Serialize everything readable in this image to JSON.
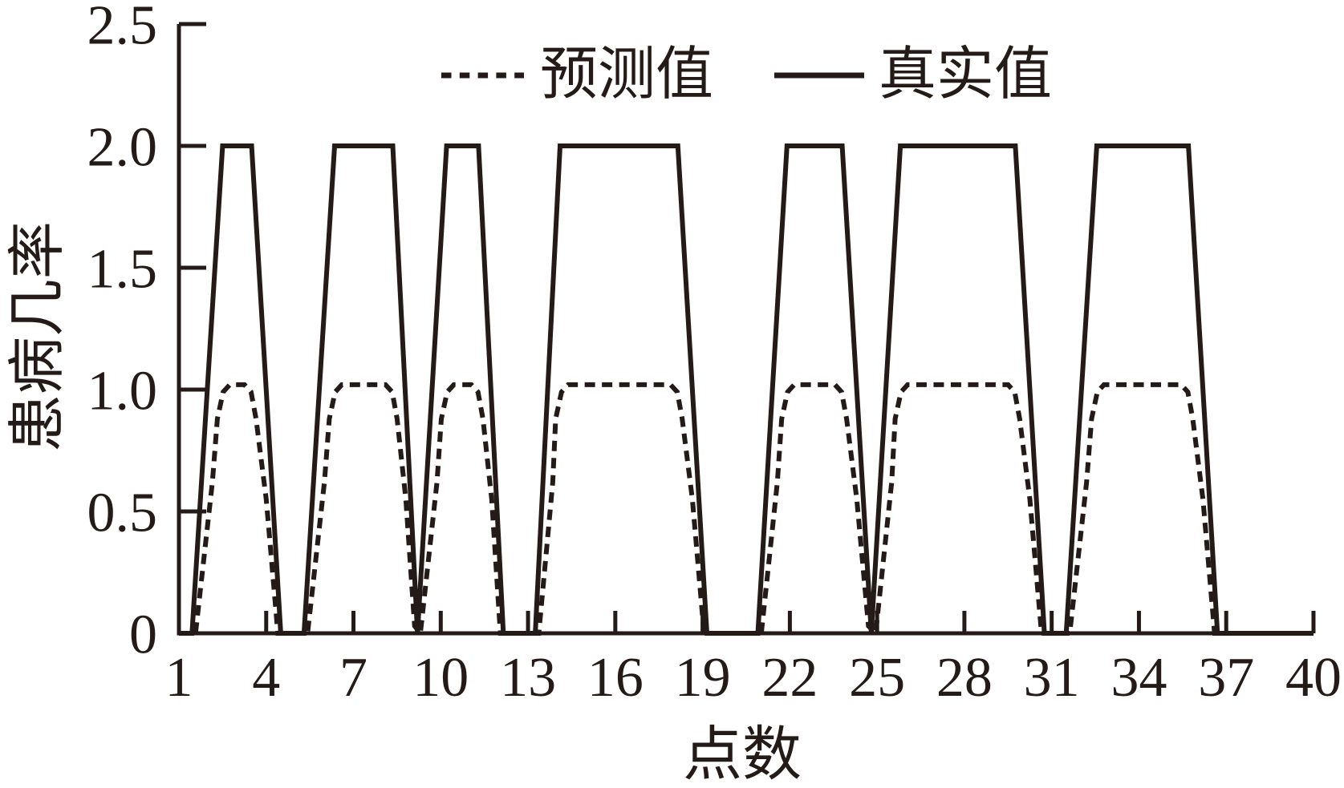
{
  "figure": {
    "background": "#ffffff",
    "ink_color": "#241b18"
  },
  "legend": {
    "items": [
      {
        "label": "预测值",
        "style": "dashed"
      },
      {
        "label": "真实值",
        "style": "solid"
      }
    ]
  },
  "chart_data": {
    "type": "line",
    "title": "",
    "xlabel": "点数",
    "ylabel": "患病几率",
    "xlim": [
      1,
      40
    ],
    "ylim": [
      0,
      2.5
    ],
    "grid": false,
    "legend_position": "top-center",
    "xticks": {
      "values": [
        1,
        4,
        7,
        10,
        13,
        16,
        19,
        22,
        25,
        28,
        31,
        34,
        37,
        40
      ],
      "labels": [
        "1",
        "4",
        "7",
        "10",
        "13",
        "16",
        "19",
        "22",
        "25",
        "28",
        "31",
        "34",
        "37",
        "40"
      ]
    },
    "yticks": {
      "values": [
        0,
        0.5,
        1.0,
        1.5,
        2.0,
        2.5
      ],
      "labels": [
        "0",
        "0.5",
        "1.0",
        "1.5",
        "2.0",
        "2.5"
      ]
    },
    "series": [
      {
        "name": "真实值",
        "style": "solid",
        "values_range": [
          0,
          2
        ],
        "points": [
          [
            1,
            0
          ],
          [
            1.45,
            0
          ],
          [
            2.5,
            2
          ],
          [
            3.5,
            2
          ],
          [
            4.5,
            0
          ],
          [
            5.3,
            0
          ],
          [
            6.35,
            2
          ],
          [
            8.35,
            2
          ],
          [
            9.2,
            0
          ],
          [
            10.2,
            2
          ],
          [
            11.3,
            2
          ],
          [
            12.15,
            0
          ],
          [
            13.25,
            0
          ],
          [
            14.1,
            2
          ],
          [
            18.15,
            2
          ],
          [
            19.15,
            0
          ],
          [
            20.9,
            0
          ],
          [
            21.9,
            2
          ],
          [
            23.8,
            2
          ],
          [
            24.8,
            0
          ],
          [
            25.8,
            2
          ],
          [
            29.75,
            2
          ],
          [
            30.75,
            0
          ],
          [
            31.5,
            0
          ],
          [
            32.55,
            2
          ],
          [
            35.7,
            2
          ],
          [
            36.7,
            0
          ],
          [
            40,
            0
          ]
        ]
      },
      {
        "name": "预测值",
        "style": "dashed",
        "values_range": [
          0,
          1.02
        ],
        "points": [
          [
            1,
            0
          ],
          [
            1.57,
            0
          ],
          [
            2.15,
            0.62
          ],
          [
            2.32,
            0.88
          ],
          [
            2.52,
            0.99
          ],
          [
            2.75,
            1.02
          ],
          [
            3.25,
            1.02
          ],
          [
            3.48,
            0.99
          ],
          [
            3.65,
            0.88
          ],
          [
            4.0,
            0.55
          ],
          [
            4.4,
            0
          ],
          [
            5.42,
            0
          ],
          [
            6.0,
            0.62
          ],
          [
            6.17,
            0.88
          ],
          [
            6.37,
            0.99
          ],
          [
            6.6,
            1.02
          ],
          [
            8.1,
            1.02
          ],
          [
            8.33,
            0.99
          ],
          [
            8.5,
            0.88
          ],
          [
            8.8,
            0.55
          ],
          [
            9.1,
            0.03
          ],
          [
            9.3,
            0
          ],
          [
            9.87,
            0.62
          ],
          [
            10.02,
            0.88
          ],
          [
            10.22,
            0.99
          ],
          [
            10.45,
            1.02
          ],
          [
            11.05,
            1.02
          ],
          [
            11.28,
            0.99
          ],
          [
            11.45,
            0.88
          ],
          [
            11.75,
            0.55
          ],
          [
            12.05,
            0
          ],
          [
            13.37,
            0
          ],
          [
            13.85,
            0.62
          ],
          [
            13.95,
            0.88
          ],
          [
            14.15,
            0.99
          ],
          [
            14.38,
            1.02
          ],
          [
            17.9,
            1.02
          ],
          [
            18.13,
            0.99
          ],
          [
            18.3,
            0.88
          ],
          [
            18.65,
            0.55
          ],
          [
            19.05,
            0
          ],
          [
            21.02,
            0
          ],
          [
            21.57,
            0.62
          ],
          [
            21.72,
            0.88
          ],
          [
            21.92,
            0.99
          ],
          [
            22.15,
            1.02
          ],
          [
            23.55,
            1.02
          ],
          [
            23.78,
            0.99
          ],
          [
            23.95,
            0.88
          ],
          [
            24.3,
            0.55
          ],
          [
            24.7,
            0.03
          ],
          [
            24.95,
            0
          ],
          [
            25.5,
            0.62
          ],
          [
            25.62,
            0.88
          ],
          [
            25.82,
            0.99
          ],
          [
            26.05,
            1.02
          ],
          [
            29.5,
            1.02
          ],
          [
            29.73,
            0.99
          ],
          [
            29.9,
            0.88
          ],
          [
            30.25,
            0.55
          ],
          [
            30.65,
            0
          ],
          [
            31.62,
            0
          ],
          [
            32.2,
            0.62
          ],
          [
            32.37,
            0.88
          ],
          [
            32.57,
            0.99
          ],
          [
            32.8,
            1.02
          ],
          [
            35.45,
            1.02
          ],
          [
            35.68,
            0.99
          ],
          [
            35.85,
            0.88
          ],
          [
            36.2,
            0.55
          ],
          [
            36.6,
            0
          ],
          [
            40,
            0
          ]
        ]
      }
    ]
  }
}
